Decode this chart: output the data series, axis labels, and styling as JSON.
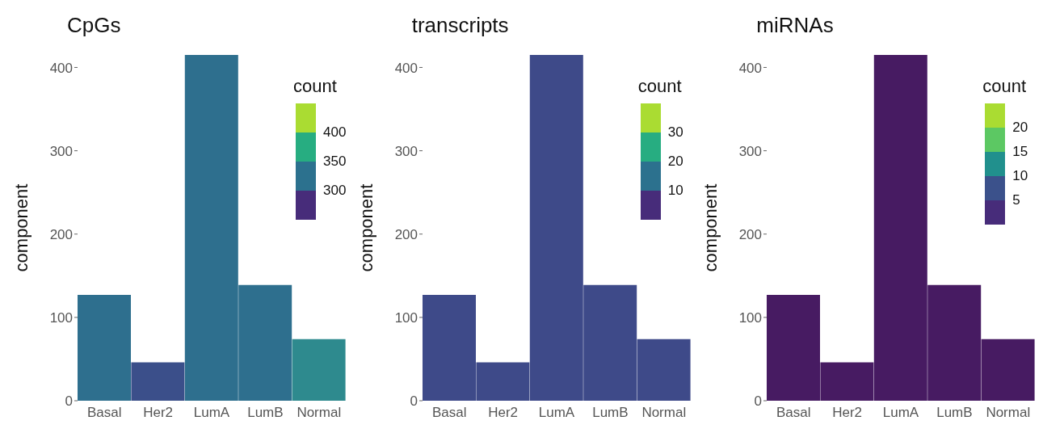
{
  "chart_data": [
    {
      "type": "bar",
      "title": "CpGs",
      "ylabel": "component",
      "clabel": "count",
      "categories": [
        "Basal",
        "Her2",
        "LumA",
        "LumB",
        "Normal"
      ],
      "values": [
        127,
        46,
        415,
        139,
        74
      ],
      "colors": [
        "#2e6f8e",
        "#3b4f8a",
        "#2e6f8e",
        "#2e6f8e",
        "#2e8a8e"
      ],
      "ylim": [
        0,
        415
      ],
      "yticks": [
        0,
        100,
        200,
        300,
        400
      ],
      "annotations": [
        "400",
        "350",
        "300"
      ],
      "grid": false
    },
    {
      "type": "bar",
      "title": "transcripts",
      "ylabel": "component",
      "clabel": "count",
      "categories": [
        "Basal",
        "Her2",
        "LumA",
        "LumB",
        "Normal"
      ],
      "values": [
        127,
        46,
        415,
        139,
        74
      ],
      "colors": [
        "#3e4a89",
        "#3e4a89",
        "#3e4a89",
        "#3e4a89",
        "#3e4a89"
      ],
      "ylim": [
        0,
        415
      ],
      "yticks": [
        0,
        100,
        200,
        300,
        400
      ],
      "annotations": [
        "30",
        "20",
        "10"
      ],
      "grid": false
    },
    {
      "type": "bar",
      "title": "miRNAs",
      "ylabel": "component",
      "clabel": "count",
      "categories": [
        "Basal",
        "Her2",
        "LumA",
        "LumB",
        "Normal"
      ],
      "values": [
        127,
        46,
        415,
        139,
        74
      ],
      "colors": [
        "#471b62",
        "#471b62",
        "#471b62",
        "#471b62",
        "#471b62"
      ],
      "ylim": [
        0,
        415
      ],
      "yticks": [
        0,
        100,
        200,
        300,
        400
      ],
      "annotations": [
        "20",
        "15",
        "10",
        "5"
      ],
      "grid": false
    }
  ]
}
